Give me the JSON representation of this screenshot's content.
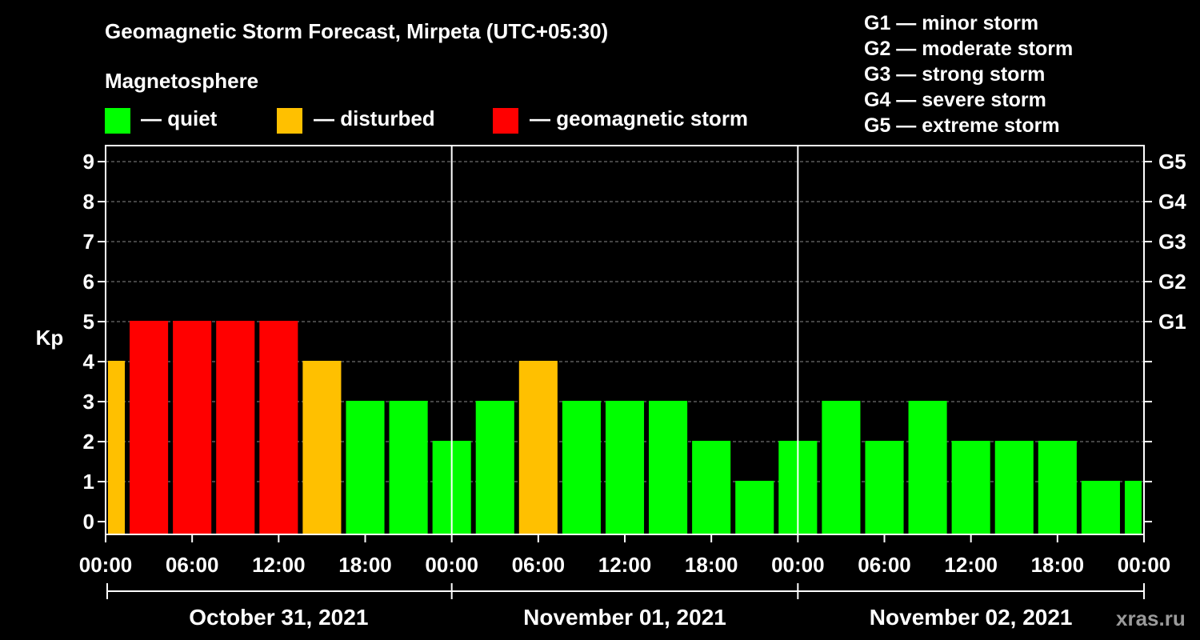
{
  "title": "Geomagnetic Storm Forecast, Mirpeta (UTC+05:30)",
  "legend": {
    "heading": "Magnetosphere",
    "items": [
      {
        "label": "— quiet",
        "color": "#00ff00"
      },
      {
        "label": "— disturbed",
        "color": "#ffc000"
      },
      {
        "label": "— geomagnetic storm",
        "color": "#ff0000"
      }
    ]
  },
  "storm_scale": [
    "G1 — minor storm",
    "G2 — moderate storm",
    "G3 — strong storm",
    "G4 — severe storm",
    "G5 — extreme storm"
  ],
  "watermark": "xras.ru",
  "colors": {
    "quiet": "#00ff00",
    "disturbed": "#ffc000",
    "storm": "#ff0000",
    "background": "#000000",
    "axes": "#ffffff"
  },
  "chart_data": {
    "type": "bar",
    "ylabel": "Kp",
    "ylim": [
      0,
      9
    ],
    "y_ticks": [
      0,
      1,
      2,
      3,
      4,
      5,
      6,
      7,
      8,
      9
    ],
    "right_axis_labels": [
      {
        "kp": 5,
        "label": "G1"
      },
      {
        "kp": 6,
        "label": "G2"
      },
      {
        "kp": 7,
        "label": "G3"
      },
      {
        "kp": 8,
        "label": "G4"
      },
      {
        "kp": 9,
        "label": "G5"
      }
    ],
    "x_tick_hours": [
      0,
      6,
      12,
      18,
      24,
      30,
      36,
      42,
      48,
      54,
      60,
      66,
      72
    ],
    "x_tick_labels": [
      "00:00",
      "06:00",
      "12:00",
      "18:00",
      "00:00",
      "06:00",
      "12:00",
      "18:00",
      "00:00",
      "06:00",
      "12:00",
      "18:00",
      "00:00"
    ],
    "dates": [
      "October 31, 2021",
      "November 01, 2021",
      "November 02, 2021"
    ],
    "grid": true,
    "bars": [
      {
        "start_hour": 0,
        "end_hour": 1.5,
        "kp": 4,
        "level": "disturbed"
      },
      {
        "start_hour": 1.5,
        "end_hour": 4.5,
        "kp": 5,
        "level": "storm"
      },
      {
        "start_hour": 4.5,
        "end_hour": 7.5,
        "kp": 5,
        "level": "storm"
      },
      {
        "start_hour": 7.5,
        "end_hour": 10.5,
        "kp": 5,
        "level": "storm"
      },
      {
        "start_hour": 10.5,
        "end_hour": 13.5,
        "kp": 5,
        "level": "storm"
      },
      {
        "start_hour": 13.5,
        "end_hour": 16.5,
        "kp": 4,
        "level": "disturbed"
      },
      {
        "start_hour": 16.5,
        "end_hour": 19.5,
        "kp": 3,
        "level": "quiet"
      },
      {
        "start_hour": 19.5,
        "end_hour": 22.5,
        "kp": 3,
        "level": "quiet"
      },
      {
        "start_hour": 22.5,
        "end_hour": 25.5,
        "kp": 2,
        "level": "quiet"
      },
      {
        "start_hour": 25.5,
        "end_hour": 28.5,
        "kp": 3,
        "level": "quiet"
      },
      {
        "start_hour": 28.5,
        "end_hour": 31.5,
        "kp": 4,
        "level": "disturbed"
      },
      {
        "start_hour": 31.5,
        "end_hour": 34.5,
        "kp": 3,
        "level": "quiet"
      },
      {
        "start_hour": 34.5,
        "end_hour": 37.5,
        "kp": 3,
        "level": "quiet"
      },
      {
        "start_hour": 37.5,
        "end_hour": 40.5,
        "kp": 3,
        "level": "quiet"
      },
      {
        "start_hour": 40.5,
        "end_hour": 43.5,
        "kp": 2,
        "level": "quiet"
      },
      {
        "start_hour": 43.5,
        "end_hour": 46.5,
        "kp": 1,
        "level": "quiet"
      },
      {
        "start_hour": 46.5,
        "end_hour": 49.5,
        "kp": 2,
        "level": "quiet"
      },
      {
        "start_hour": 49.5,
        "end_hour": 52.5,
        "kp": 3,
        "level": "quiet"
      },
      {
        "start_hour": 52.5,
        "end_hour": 55.5,
        "kp": 2,
        "level": "quiet"
      },
      {
        "start_hour": 55.5,
        "end_hour": 58.5,
        "kp": 3,
        "level": "quiet"
      },
      {
        "start_hour": 58.5,
        "end_hour": 61.5,
        "kp": 2,
        "level": "quiet"
      },
      {
        "start_hour": 61.5,
        "end_hour": 64.5,
        "kp": 2,
        "level": "quiet"
      },
      {
        "start_hour": 64.5,
        "end_hour": 67.5,
        "kp": 2,
        "level": "quiet"
      },
      {
        "start_hour": 67.5,
        "end_hour": 70.5,
        "kp": 1,
        "level": "quiet"
      },
      {
        "start_hour": 70.5,
        "end_hour": 72,
        "kp": 1,
        "level": "quiet"
      }
    ]
  }
}
